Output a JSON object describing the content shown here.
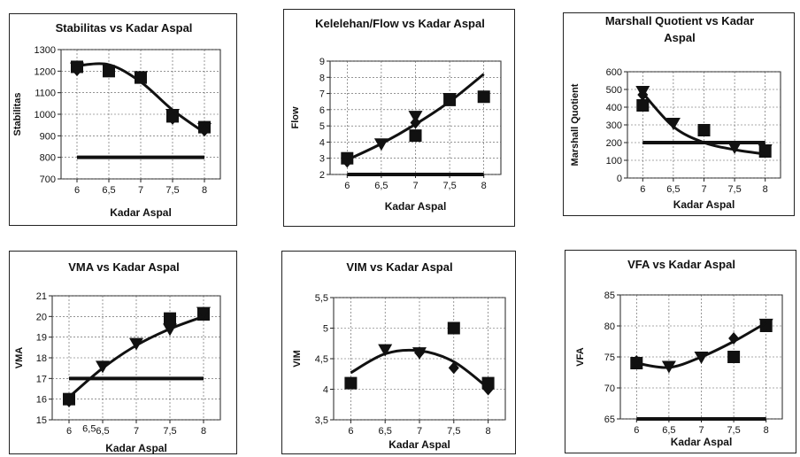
{
  "chart_data": [
    {
      "id": "stab",
      "type": "scatter",
      "title": [
        "Stabilitas vs Kadar Aspal"
      ],
      "xlabel": "Kadar Aspal",
      "ylabel": "Stabilitas",
      "x_ticks": [
        "6",
        "6,5",
        "7",
        "7,5",
        "8"
      ],
      "y_ticks": [
        "700",
        "800",
        "900",
        "1000",
        "1100",
        "1200",
        "1300"
      ],
      "xlim": [
        5.75,
        8.25
      ],
      "ylim": [
        700,
        1300
      ],
      "grid": true,
      "series": [
        {
          "marker": "square",
          "points": [
            [
              6,
              1220
            ],
            [
              6.5,
              1200
            ],
            [
              7,
              1170
            ],
            [
              7.5,
              990
            ],
            [
              8,
              940
            ]
          ]
        },
        {
          "marker": "triangle",
          "points": [
            [
              6,
              1215
            ],
            [
              7,
              1175
            ],
            [
              7.5,
              1000
            ],
            [
              8,
              935
            ]
          ]
        },
        {
          "marker": "diamond",
          "points": [
            [
              6,
              1205
            ],
            [
              7.5,
              980
            ],
            [
              8,
              925
            ]
          ]
        }
      ],
      "trend": [
        [
          6,
          1225
        ],
        [
          6.5,
          1230
        ],
        [
          7,
          1150
        ],
        [
          7.5,
          1020
        ],
        [
          8,
          915
        ]
      ],
      "limit": 800
    },
    {
      "id": "flow",
      "type": "scatter",
      "title": [
        "Kelelehan/Flow vs Kadar Aspal"
      ],
      "xlabel": "Kadar Aspal",
      "ylabel": "Flow",
      "x_ticks": [
        "6",
        "6,5",
        "7",
        "7,5",
        "8"
      ],
      "y_ticks": [
        "2",
        "3",
        "4",
        "5",
        "6",
        "7",
        "8",
        "9"
      ],
      "xlim": [
        5.75,
        8.25
      ],
      "ylim": [
        2,
        9
      ],
      "grid": true,
      "series": [
        {
          "marker": "square",
          "points": [
            [
              6,
              3
            ],
            [
              7,
              4.4
            ],
            [
              7.5,
              6.6
            ],
            [
              8,
              6.8
            ]
          ]
        },
        {
          "marker": "triangle",
          "points": [
            [
              6.5,
              3.9
            ],
            [
              7,
              5.6
            ],
            [
              7.5,
              6.7
            ]
          ]
        },
        {
          "marker": "diamond",
          "points": [
            [
              6,
              2.8
            ],
            [
              7,
              5.2
            ]
          ]
        }
      ],
      "trend": [
        [
          6,
          2.9
        ],
        [
          6.5,
          3.9
        ],
        [
          7,
          5.1
        ],
        [
          7.5,
          6.5
        ],
        [
          8,
          8.2
        ]
      ],
      "limit": 2
    },
    {
      "id": "mq",
      "type": "scatter",
      "title": [
        "Marshall Quotient vs Kadar",
        "Aspal"
      ],
      "xlabel": "Kadar Aspal",
      "ylabel": "Marshall Quotient",
      "x_ticks": [
        "6",
        "6,5",
        "7",
        "7,5",
        "8"
      ],
      "y_ticks": [
        "0",
        "100",
        "200",
        "300",
        "400",
        "500",
        "600"
      ],
      "xlim": [
        5.75,
        8.25
      ],
      "ylim": [
        0,
        600
      ],
      "grid": true,
      "series": [
        {
          "marker": "square",
          "points": [
            [
              6,
              410
            ],
            [
              7,
              270
            ],
            [
              8,
              150
            ]
          ]
        },
        {
          "marker": "triangle",
          "points": [
            [
              6,
              490
            ],
            [
              6.5,
              310
            ],
            [
              7.5,
              175
            ],
            [
              8,
              160
            ]
          ]
        },
        {
          "marker": "diamond",
          "points": [
            [
              6,
              470
            ]
          ]
        }
      ],
      "trend": [
        [
          6,
          480
        ],
        [
          6.5,
          290
        ],
        [
          7,
          200
        ],
        [
          7.5,
          160
        ],
        [
          8,
          135
        ]
      ],
      "limit": 200
    },
    {
      "id": "vma",
      "type": "scatter",
      "title": [
        "VMA vs Kadar Aspal"
      ],
      "xlabel": "Kadar Aspal",
      "ylabel": "VMA",
      "x_ticks": [
        "6",
        "6,5",
        "7",
        "7,5",
        "8"
      ],
      "y_ticks": [
        "15",
        "16",
        "17",
        "18",
        "19",
        "20",
        "21"
      ],
      "xlim": [
        5.75,
        8.25
      ],
      "ylim": [
        15,
        21
      ],
      "grid": true,
      "series": [
        {
          "marker": "square",
          "points": [
            [
              6,
              16
            ],
            [
              7.5,
              19.9
            ],
            [
              8,
              20.1
            ]
          ]
        },
        {
          "marker": "triangle",
          "points": [
            [
              6.5,
              17.6
            ],
            [
              7,
              18.7
            ],
            [
              7.5,
              19.4
            ],
            [
              8,
              20.2
            ]
          ]
        },
        {
          "marker": "diamond",
          "points": [
            [
              6,
              15.9
            ],
            [
              7.5,
              19.6
            ]
          ]
        }
      ],
      "trend": [
        [
          6,
          16.1
        ],
        [
          6.5,
          17.5
        ],
        [
          7,
          18.6
        ],
        [
          7.5,
          19.4
        ],
        [
          8,
          20
        ]
      ],
      "limit": 17,
      "extra_text": [
        {
          "text": "6,5",
          "x": 6.3,
          "y": 14.6
        }
      ]
    },
    {
      "id": "vim",
      "type": "scatter",
      "title": [
        "VIM vs Kadar Aspal"
      ],
      "xlabel": "Kadar Aspal",
      "ylabel": "VIM",
      "x_ticks": [
        "6",
        "6,5",
        "7",
        "7,5",
        "8"
      ],
      "y_ticks": [
        "3,5",
        "4",
        "4,5",
        "5",
        "5,5"
      ],
      "xlim": [
        5.75,
        8.25
      ],
      "ylim": [
        3.5,
        5.5
      ],
      "grid": true,
      "series": [
        {
          "marker": "square",
          "points": [
            [
              6,
              4.1
            ],
            [
              7.5,
              5
            ],
            [
              8,
              4.1
            ]
          ]
        },
        {
          "marker": "triangle",
          "points": [
            [
              6.5,
              4.65
            ],
            [
              7,
              4.6
            ]
          ]
        },
        {
          "marker": "diamond",
          "points": [
            [
              7,
              4.6
            ],
            [
              7.5,
              4.35
            ],
            [
              8,
              4
            ]
          ]
        }
      ],
      "trend": [
        [
          6,
          4.27
        ],
        [
          6.5,
          4.58
        ],
        [
          7,
          4.63
        ],
        [
          7.5,
          4.45
        ],
        [
          8,
          4.02
        ]
      ],
      "limit": null
    },
    {
      "id": "vfa",
      "type": "scatter",
      "title": [
        "VFA vs Kadar Aspal"
      ],
      "xlabel": "Kadar Aspal",
      "ylabel": "VFA",
      "x_ticks": [
        "6",
        "6,5",
        "7",
        "7,5",
        "8"
      ],
      "y_ticks": [
        "65",
        "70",
        "75",
        "80",
        "85"
      ],
      "xlim": [
        5.75,
        8.25
      ],
      "ylim": [
        65,
        85
      ],
      "grid": true,
      "series": [
        {
          "marker": "square",
          "points": [
            [
              6,
              74
            ],
            [
              7.5,
              75
            ],
            [
              8,
              80
            ]
          ]
        },
        {
          "marker": "triangle",
          "points": [
            [
              6.5,
              73.5
            ],
            [
              7,
              75
            ],
            [
              8,
              80.3
            ]
          ]
        },
        {
          "marker": "diamond",
          "points": [
            [
              6,
              74.3
            ],
            [
              7.5,
              78
            ]
          ]
        }
      ],
      "trend": [
        [
          6,
          74
        ],
        [
          6.5,
          73.3
        ],
        [
          7,
          75
        ],
        [
          7.5,
          77.5
        ],
        [
          8,
          80.5
        ]
      ],
      "limit": 65
    }
  ]
}
